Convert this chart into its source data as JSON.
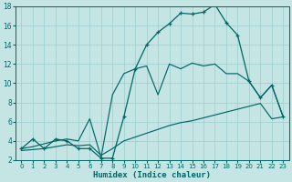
{
  "x": [
    0,
    1,
    2,
    3,
    4,
    5,
    6,
    7,
    8,
    9,
    10,
    11,
    12,
    13,
    14,
    15,
    16,
    17,
    18,
    19,
    20,
    21,
    22,
    23
  ],
  "curve_y": [
    3.2,
    4.2,
    3.2,
    4.2,
    4.0,
    3.2,
    3.2,
    2.2,
    2.2,
    6.5,
    11.5,
    14.0,
    15.3,
    16.2,
    17.3,
    17.2,
    17.4,
    18.2,
    16.3,
    15.0,
    10.2,
    8.5,
    9.8,
    6.5
  ],
  "upper_trend_y": [
    3.2,
    3.4,
    3.7,
    4.0,
    4.2,
    4.0,
    6.3,
    2.3,
    8.8,
    11.0,
    11.5,
    11.8,
    8.8,
    12.0,
    11.5,
    12.1,
    11.8,
    12.0,
    11.0,
    11.0,
    10.2,
    8.5,
    9.8,
    6.5
  ],
  "lower_trend_y": [
    3.0,
    3.1,
    3.2,
    3.4,
    3.6,
    3.5,
    3.6,
    2.5,
    3.2,
    4.0,
    4.4,
    4.8,
    5.2,
    5.6,
    5.9,
    6.1,
    6.4,
    6.7,
    7.0,
    7.3,
    7.6,
    7.9,
    6.3,
    6.5
  ],
  "bg_color": "#c5e5e5",
  "line_color": "#006666",
  "grid_color": "#99cccc",
  "xlabel": "Humidex (Indice chaleur)",
  "ylim": [
    2,
    18
  ],
  "xlim_min": -0.5,
  "xlim_max": 23.5,
  "yticks": [
    2,
    4,
    6,
    8,
    10,
    12,
    14,
    16,
    18
  ],
  "xticks": [
    0,
    1,
    2,
    3,
    4,
    5,
    6,
    7,
    8,
    9,
    10,
    11,
    12,
    13,
    14,
    15,
    16,
    17,
    18,
    19,
    20,
    21,
    22,
    23
  ]
}
